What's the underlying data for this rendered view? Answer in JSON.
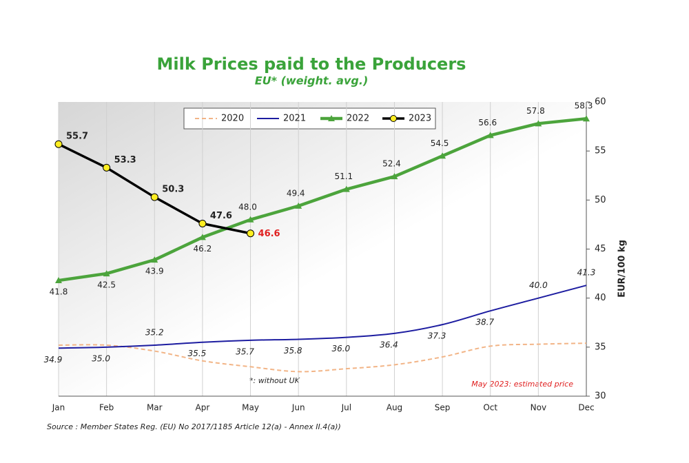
{
  "chart_data": {
    "type": "line",
    "title": "Milk Prices paid to the Producers",
    "subtitle": "EU* (weight. avg.)",
    "y_axis_label": "EUR/100 kg",
    "categories": [
      "Jan",
      "Feb",
      "Mar",
      "Apr",
      "May",
      "Jun",
      "Jul",
      "Aug",
      "Sep",
      "Oct",
      "Nov",
      "Dec"
    ],
    "series": [
      {
        "name": "2020",
        "color": "#f2b486",
        "dashed": true,
        "smooth": true,
        "values": [
          35.2,
          35.2,
          34.6,
          33.6,
          33.0,
          32.5,
          32.8,
          33.2,
          34.0,
          35.1,
          35.3,
          35.4
        ]
      },
      {
        "name": "2021",
        "color": "#1c1ca0",
        "smooth": true,
        "marker": "none",
        "values": [
          34.9,
          35.0,
          35.2,
          35.5,
          35.7,
          35.8,
          36.0,
          36.4,
          37.3,
          38.7,
          40.0,
          41.3
        ],
        "value_labels": [
          "34.9",
          "35.0",
          "35.2",
          "35.5",
          "35.7",
          "35.8",
          "36.0",
          "36.4",
          "37.3",
          "38.7",
          "40.0",
          "41.3"
        ]
      },
      {
        "name": "2022",
        "color": "#4ca43c",
        "marker": "triangle",
        "values": [
          41.8,
          42.5,
          43.9,
          46.2,
          48.0,
          49.4,
          51.1,
          52.4,
          54.5,
          56.6,
          57.8,
          58.3
        ],
        "value_labels": [
          "41.8",
          "42.5",
          "43.9",
          "46.2",
          "48.0",
          "49.4",
          "51.1",
          "52.4",
          "54.5",
          "56.6",
          "57.8",
          "58.3"
        ]
      },
      {
        "name": "2023",
        "color": "#000000",
        "marker": "circle",
        "marker_color": "#ffee22",
        "values": [
          55.7,
          53.3,
          50.3,
          47.6,
          46.6,
          null,
          null,
          null,
          null,
          null,
          null,
          null
        ]
      }
    ],
    "ylim": [
      30,
      60
    ],
    "yticks": [
      30,
      35,
      40,
      45,
      50,
      55,
      60
    ],
    "annotations": [
      "*: without UK",
      "May 2023: estimated price"
    ],
    "source": "Source : Member States Reg. (EU) No 2017/1185 Article 12(a) - Annex II.4(a))"
  }
}
